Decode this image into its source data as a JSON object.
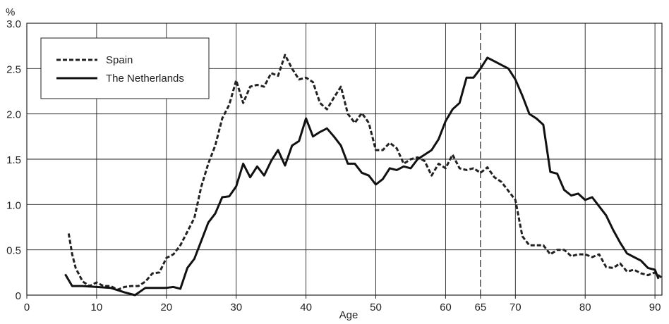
{
  "chart_data": {
    "type": "line",
    "title": "",
    "xlabel": "Age",
    "ylabel": "%",
    "xlim": [
      0,
      91
    ],
    "ylim": [
      0,
      3.0
    ],
    "x_ticks": [
      0,
      10,
      20,
      30,
      40,
      50,
      60,
      65,
      70,
      80,
      90
    ],
    "y_ticks": [
      "0",
      "0.5",
      "1.0",
      "1.5",
      "2.0",
      "2.5",
      "3.0"
    ],
    "grid": true,
    "legend_position": "top-left",
    "reference_line": {
      "x": 65,
      "style": "dashed"
    },
    "series": [
      {
        "name": "Spain",
        "line_style": "dashed",
        "color": "#222222",
        "x": [
          6,
          6.5,
          7,
          8,
          9,
          10,
          11,
          12,
          13,
          14,
          15,
          16,
          17,
          18,
          19,
          20,
          21,
          22,
          23,
          24,
          25,
          26,
          27,
          28,
          29,
          30,
          31,
          32,
          33,
          34,
          35,
          36,
          37,
          38,
          39,
          40,
          41,
          42,
          43,
          44,
          45,
          46,
          47,
          48,
          49,
          50,
          51,
          52,
          53,
          54,
          55,
          56,
          57,
          58,
          59,
          60,
          61,
          62,
          63,
          64,
          65,
          66,
          67,
          68,
          69,
          70,
          71,
          72,
          73,
          74,
          75,
          76,
          77,
          78,
          79,
          80,
          81,
          82,
          83,
          84,
          85,
          86,
          87,
          88,
          89,
          90,
          91
        ],
        "values": [
          0.68,
          0.45,
          0.3,
          0.15,
          0.1,
          0.14,
          0.1,
          0.1,
          0.06,
          0.09,
          0.1,
          0.1,
          0.15,
          0.24,
          0.25,
          0.41,
          0.45,
          0.55,
          0.7,
          0.85,
          1.2,
          1.45,
          1.65,
          1.95,
          2.1,
          2.37,
          2.12,
          2.3,
          2.32,
          2.3,
          2.45,
          2.42,
          2.65,
          2.5,
          2.38,
          2.4,
          2.35,
          2.12,
          2.05,
          2.18,
          2.3,
          2.0,
          1.9,
          2.01,
          1.9,
          1.6,
          1.6,
          1.68,
          1.62,
          1.45,
          1.5,
          1.52,
          1.48,
          1.32,
          1.45,
          1.4,
          1.55,
          1.4,
          1.38,
          1.4,
          1.35,
          1.41,
          1.3,
          1.25,
          1.15,
          1.05,
          0.65,
          0.55,
          0.55,
          0.55,
          0.45,
          0.5,
          0.5,
          0.43,
          0.45,
          0.45,
          0.42,
          0.45,
          0.31,
          0.3,
          0.35,
          0.26,
          0.28,
          0.24,
          0.22,
          0.25,
          0.19
        ]
      },
      {
        "name": "The Netherlands",
        "line_style": "solid",
        "color": "#111111",
        "x": [
          5.5,
          6.5,
          8,
          10,
          12,
          14,
          15.5,
          17,
          18,
          20,
          21,
          22,
          23,
          24,
          25,
          26,
          27,
          28,
          29,
          30,
          31,
          32,
          33,
          34,
          35,
          36,
          37,
          38,
          39,
          40,
          41,
          42,
          43,
          44,
          45,
          46,
          47,
          48,
          49,
          50,
          51,
          52,
          53,
          54,
          55,
          56,
          57,
          58,
          59,
          60,
          61,
          62,
          63,
          64,
          65,
          66,
          67,
          68,
          69,
          70,
          71,
          72,
          73,
          74,
          75,
          76,
          77,
          78,
          79,
          80,
          81,
          82,
          83,
          84,
          85,
          86,
          87,
          88,
          89,
          90,
          90.5
        ],
        "values": [
          0.23,
          0.1,
          0.1,
          0.09,
          0.08,
          0.03,
          0.0,
          0.08,
          0.08,
          0.08,
          0.09,
          0.07,
          0.3,
          0.4,
          0.6,
          0.8,
          0.9,
          1.08,
          1.09,
          1.2,
          1.45,
          1.3,
          1.42,
          1.32,
          1.48,
          1.6,
          1.43,
          1.65,
          1.7,
          1.95,
          1.75,
          1.8,
          1.84,
          1.75,
          1.65,
          1.45,
          1.45,
          1.35,
          1.32,
          1.22,
          1.28,
          1.4,
          1.38,
          1.42,
          1.4,
          1.5,
          1.55,
          1.6,
          1.72,
          1.92,
          2.05,
          2.12,
          2.4,
          2.4,
          2.5,
          2.62,
          2.58,
          2.54,
          2.5,
          2.38,
          2.2,
          2.0,
          1.95,
          1.88,
          1.36,
          1.34,
          1.16,
          1.1,
          1.12,
          1.05,
          1.08,
          0.98,
          0.88,
          0.72,
          0.58,
          0.46,
          0.42,
          0.38,
          0.3,
          0.28,
          0.18
        ]
      }
    ]
  }
}
